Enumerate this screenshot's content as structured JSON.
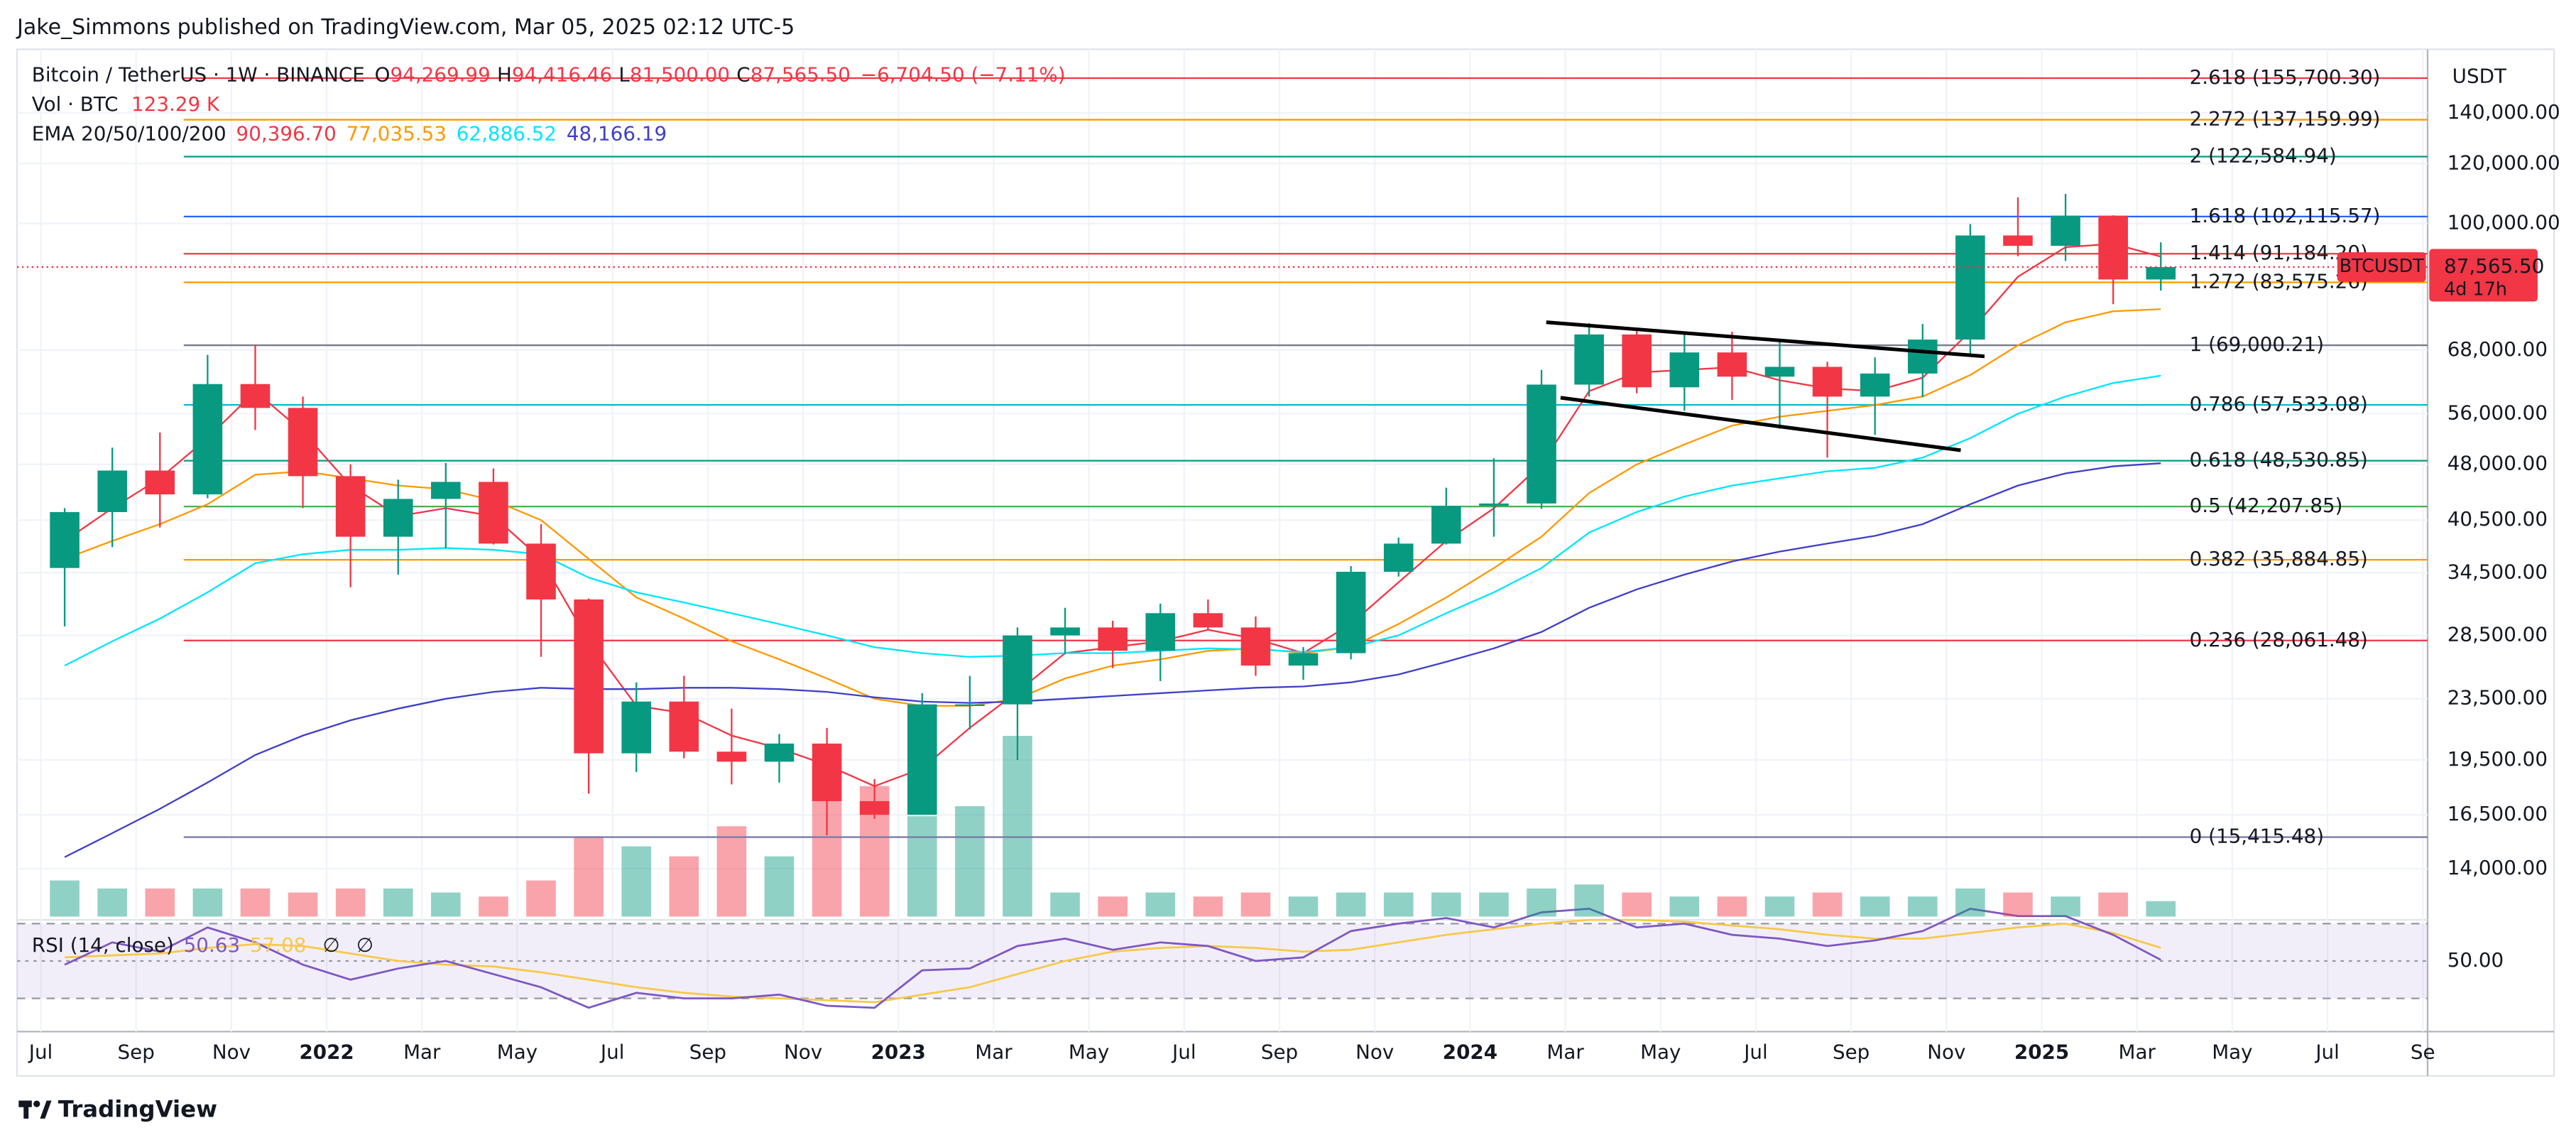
{
  "header": {
    "publisher": "Jake_Simmons published on TradingView.com, Mar 05, 2025 02:12 UTC-5"
  },
  "footer": {
    "brand": "TradingView"
  },
  "chart_data": {
    "type": "candlestick",
    "log_scale": true,
    "grid": true,
    "legend": {
      "symbol": "Bitcoin / TetherUS · 1W · BINANCE",
      "ohlc": [
        {
          "key": "O",
          "value": "94,269.99"
        },
        {
          "key": "H",
          "value": "94,416.46"
        },
        {
          "key": "L",
          "value": "81,500.00"
        },
        {
          "key": "C",
          "value": "87,565.50"
        }
      ],
      "change": "−6,704.50 (−7.11%)",
      "volume_label": "Vol · BTC",
      "volume_value": "123.29 K",
      "ema_label": "EMA 20/50/100/200",
      "ema_values": [
        "90,396.70",
        "77,035.53",
        "62,886.52",
        "48,166.19"
      ]
    },
    "price_axis_unit": "USDT",
    "last_price": {
      "symbol": "BTCUSDT",
      "value": 87565.5,
      "label": "87,565.50",
      "countdown": "4d 17h",
      "color": "#f23645"
    },
    "up_color": "#089981",
    "down_color": "#f23645",
    "candles": {
      "x": [
        6.5,
        7.5,
        8.5,
        9.5,
        10.5,
        11.5,
        12.5,
        13.5,
        14.5,
        15.5,
        16.5,
        17.5,
        18.5,
        19.5,
        20.5,
        21.5,
        22.5,
        23.5,
        24.5,
        25.5,
        26.5,
        27.5,
        28.5,
        29.5,
        30.5,
        31.5,
        32.5,
        33.5,
        34.5,
        35.5,
        36.5,
        37.5,
        38.5,
        39.5,
        40.5,
        41.5,
        42.5,
        43.5,
        44.5,
        45.5,
        46.5,
        47.5,
        48.5,
        49.5,
        50.5
      ],
      "open": [
        35000,
        41500,
        47100,
        43800,
        61300,
        57000,
        46300,
        38500,
        43200,
        45500,
        37700,
        31800,
        19900,
        23300,
        20000,
        19400,
        20500,
        17200,
        16500,
        23100,
        23100,
        28500,
        29200,
        27200,
        30500,
        29200,
        26000,
        27000,
        34600,
        37700,
        42300,
        42600,
        61200,
        71300,
        60700,
        67500,
        62700,
        64600,
        59000,
        63300,
        70200,
        96400,
        93400,
        102400,
        84300
      ],
      "high": [
        42000,
        50500,
        52900,
        67000,
        69000,
        59000,
        48000,
        45800,
        48200,
        47400,
        40000,
        31900,
        24700,
        25200,
        22800,
        21100,
        21500,
        18400,
        23900,
        25200,
        29200,
        31000,
        29800,
        31400,
        31800,
        30200,
        27500,
        35200,
        38400,
        44700,
        48900,
        64000,
        73800,
        72800,
        71900,
        71900,
        70000,
        65600,
        66500,
        73600,
        99800,
        108300,
        109400,
        102500,
        94416.46
      ],
      "low": [
        29300,
        37300,
        39600,
        43300,
        53300,
        42000,
        33000,
        34300,
        37200,
        37600,
        26700,
        17600,
        18800,
        19600,
        18100,
        18200,
        15500,
        16300,
        16500,
        21400,
        19500,
        26900,
        25800,
        24800,
        28900,
        25200,
        24900,
        26500,
        34100,
        37600,
        38500,
        41900,
        59000,
        59600,
        56500,
        58400,
        53500,
        49000,
        52500,
        58900,
        66800,
        90500,
        89200,
        78200,
        81500
      ],
      "close": [
        41500,
        47100,
        43800,
        61300,
        57000,
        46300,
        38500,
        43200,
        45500,
        37700,
        31800,
        19900,
        23300,
        20000,
        19400,
        20500,
        17200,
        16500,
        23100,
        23100,
        28500,
        29200,
        27200,
        30500,
        29200,
        26000,
        27000,
        34600,
        37700,
        42300,
        42600,
        61200,
        71300,
        60700,
        67500,
        62700,
        64600,
        59000,
        63300,
        70200,
        96400,
        93400,
        102400,
        84300,
        87565.5
      ],
      "volume": [
        288000,
        224000,
        224000,
        224000,
        224000,
        192000,
        224000,
        224000,
        192000,
        160000,
        288000,
        640000,
        560000,
        480000,
        720000,
        480000,
        1200000,
        1040000,
        800000,
        880000,
        1440000,
        192000,
        160000,
        192000,
        160000,
        192000,
        160000,
        192000,
        192000,
        192000,
        192000,
        224000,
        256000,
        192000,
        160000,
        160000,
        160000,
        192000,
        160000,
        160000,
        224000,
        192000,
        160000,
        192000,
        123290
      ]
    },
    "ema": [
      {
        "color": "#f23645",
        "values": [
          38000,
          42000,
          46000,
          52000,
          60000,
          53000,
          45000,
          41000,
          42000,
          41000,
          36000,
          28000,
          23000,
          22500,
          21000,
          20200,
          19200,
          18000,
          19000,
          21500,
          24000,
          27000,
          27500,
          28000,
          29000,
          28200,
          27000,
          29500,
          33500,
          38000,
          42000,
          48000,
          60000,
          63500,
          64000,
          64500,
          62000,
          60500,
          60000,
          62500,
          72000,
          85000,
          93000,
          94000,
          90396.7
        ]
      },
      {
        "color": "#ff9800",
        "values": [
          36000,
          38000,
          40000,
          42500,
          46500,
          47000,
          46000,
          45000,
          44500,
          43000,
          40500,
          36000,
          32000,
          30000,
          28000,
          26500,
          25000,
          23500,
          23000,
          23000,
          23500,
          25000,
          26000,
          26500,
          27200,
          27400,
          27000,
          27500,
          29500,
          32000,
          35000,
          38500,
          44000,
          48000,
          51000,
          54000,
          55500,
          56500,
          57500,
          59000,
          63000,
          69000,
          74000,
          76500,
          77035.53
        ]
      },
      {
        "color": "#00e5ff",
        "values": [
          26000,
          28000,
          30000,
          32500,
          35500,
          36500,
          37000,
          37000,
          37200,
          37000,
          36500,
          34000,
          32500,
          31500,
          30500,
          29500,
          28500,
          27500,
          27000,
          26700,
          26800,
          27000,
          27000,
          27200,
          27400,
          27300,
          27100,
          27500,
          28500,
          30500,
          32500,
          35000,
          39000,
          41500,
          43500,
          45000,
          46000,
          47000,
          47500,
          49000,
          52000,
          56000,
          59000,
          61500,
          62886.52
        ]
      },
      {
        "color": "#3f3fc8",
        "values": [
          14500,
          15600,
          16800,
          18200,
          19800,
          21000,
          22000,
          22800,
          23500,
          24000,
          24300,
          24200,
          24200,
          24300,
          24300,
          24200,
          24000,
          23600,
          23300,
          23200,
          23300,
          23500,
          23700,
          23900,
          24100,
          24300,
          24400,
          24700,
          25300,
          26300,
          27400,
          28800,
          31000,
          32800,
          34300,
          35700,
          36800,
          37700,
          38600,
          40000,
          42500,
          45000,
          46700,
          47700,
          48166.19
        ]
      }
    ],
    "fib_from_x": 9.0,
    "fib_levels": [
      {
        "value": 155700.3,
        "label": "2.618 (155,700.30)",
        "color": "#f23645"
      },
      {
        "value": 137159.99,
        "label": "2.272 (137,159.99)",
        "color": "#ff9800"
      },
      {
        "value": 122584.94,
        "label": "2 (122,584.94)",
        "color": "#089981"
      },
      {
        "value": 102115.57,
        "label": "1.618 (102,115.57)",
        "color": "#2962ff"
      },
      {
        "value": 91184.2,
        "label": "1.414 (91,184.20)",
        "color": "#f23645"
      },
      {
        "value": 83575.26,
        "label": "1.272 (83,575.26)",
        "color": "#ff9800"
      },
      {
        "value": 69000.21,
        "label": "1 (69,000.21)",
        "color": "#787b86"
      },
      {
        "value": 57533.08,
        "label": "0.786 (57,533.08)",
        "color": "#00bcd4"
      },
      {
        "value": 48530.85,
        "label": "0.618 (48,530.85)",
        "color": "#089981"
      },
      {
        "value": 42207.85,
        "label": "0.5 (42,207.85)",
        "color": "#4caf50"
      },
      {
        "value": 35884.85,
        "label": "0.382 (35,884.85)",
        "color": "#ff9800"
      },
      {
        "value": 28061.48,
        "label": "0.236 (28,061.48)",
        "color": "#f23645"
      },
      {
        "value": 15415.48,
        "label": "0 (15,415.48)",
        "color": "#7b7ba8"
      }
    ],
    "trendlines": [
      {
        "x": [
          37.6,
          46.8
        ],
        "y": [
          74000,
          66700
        ]
      },
      {
        "x": [
          37.9,
          46.3
        ],
        "y": [
          58800,
          50100
        ]
      }
    ],
    "xlim": [
      5.5,
      56.1
    ],
    "xticks": [
      {
        "value": 6,
        "label": "Jul"
      },
      {
        "value": 8,
        "label": "Sep"
      },
      {
        "value": 10,
        "label": "Nov"
      },
      {
        "value": 12,
        "label": "2022"
      },
      {
        "value": 14,
        "label": "Mar"
      },
      {
        "value": 16,
        "label": "May"
      },
      {
        "value": 18,
        "label": "Jul"
      },
      {
        "value": 20,
        "label": "Sep"
      },
      {
        "value": 22,
        "label": "Nov"
      },
      {
        "value": 24,
        "label": "2023"
      },
      {
        "value": 26,
        "label": "Mar"
      },
      {
        "value": 28,
        "label": "May"
      },
      {
        "value": 30,
        "label": "Jul"
      },
      {
        "value": 32,
        "label": "Sep"
      },
      {
        "value": 34,
        "label": "Nov"
      },
      {
        "value": 36,
        "label": "2024"
      },
      {
        "value": 38,
        "label": "Mar"
      },
      {
        "value": 40,
        "label": "May"
      },
      {
        "value": 42,
        "label": "Jul"
      },
      {
        "value": 44,
        "label": "Sep"
      },
      {
        "value": 46,
        "label": "Nov"
      },
      {
        "value": 48,
        "label": "2025"
      },
      {
        "value": 50,
        "label": "Mar"
      },
      {
        "value": 52,
        "label": "May"
      },
      {
        "value": 54,
        "label": "Jul"
      },
      {
        "value": 56,
        "label": "Se"
      }
    ],
    "ylim": [
      12100,
      170000
    ],
    "yticks": [
      {
        "value": 140000,
        "label": "140,000.00"
      },
      {
        "value": 120000,
        "label": "120,000.00"
      },
      {
        "value": 100000,
        "label": "100,000.00"
      },
      {
        "value": 68000,
        "label": "68,000.00"
      },
      {
        "value": 56000,
        "label": "56,000.00"
      },
      {
        "value": 48000,
        "label": "48,000.00"
      },
      {
        "value": 40500,
        "label": "40,500.00"
      },
      {
        "value": 34500,
        "label": "34,500.00"
      },
      {
        "value": 28500,
        "label": "28,500.00"
      },
      {
        "value": 23500,
        "label": "23,500.00"
      },
      {
        "value": 19500,
        "label": "19,500.00"
      },
      {
        "value": 16500,
        "label": "16,500.00"
      },
      {
        "value": 14000,
        "label": "14,000.00"
      }
    ],
    "rsi": {
      "label": "RSI (14, close)",
      "value_label": "50.63",
      "ma_label": "57.08",
      "extra": [
        "∅",
        "∅"
      ],
      "color": "#7e57c2",
      "ma_color": "#f7c948",
      "values": [
        48,
        60,
        55,
        68,
        60,
        48,
        40,
        46,
        50,
        43,
        36,
        25,
        33,
        30,
        30,
        32,
        26,
        25,
        45,
        46,
        58,
        62,
        56,
        60,
        58,
        50,
        52,
        66,
        70,
        73,
        68,
        76,
        78,
        68,
        70,
        64,
        62,
        58,
        61,
        66,
        78,
        74,
        74,
        64,
        50.63
      ],
      "ma_values": [
        52,
        53,
        54,
        57,
        59,
        58,
        54,
        50,
        48,
        47,
        44,
        40,
        36,
        33,
        31,
        30,
        29,
        28,
        32,
        36,
        43,
        50,
        55,
        57,
        58,
        57,
        55,
        56,
        60,
        64,
        67,
        70,
        72,
        72,
        71,
        69,
        67,
        64,
        62,
        62,
        65,
        68,
        70,
        65,
        57.08
      ],
      "ylim": [
        14,
        72
      ],
      "band": [
        30,
        70
      ],
      "levels": [
        70,
        50,
        30
      ],
      "yticks": [
        {
          "value": 50,
          "label": "50.00"
        }
      ]
    }
  }
}
